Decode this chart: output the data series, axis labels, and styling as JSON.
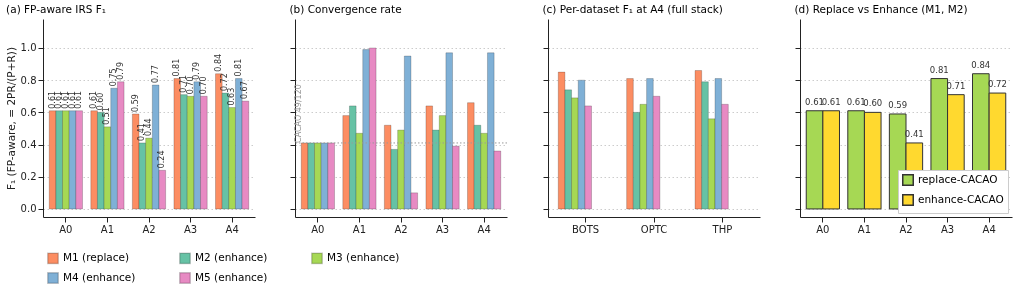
{
  "chart_data": [
    {
      "type": "bar",
      "title": "(a) FP-aware IRS F₁",
      "ylabel": "F₁ (FP-aware, = 2PR/(P+R))",
      "categories": [
        "A0",
        "A1",
        "A2",
        "A3",
        "A4"
      ],
      "series": [
        {
          "name": "M1 (replace)",
          "color": "#fc8d62",
          "values": [
            0.61,
            0.61,
            0.59,
            0.81,
            0.84
          ],
          "value_labels": [
            "0.61",
            "0.61",
            "0.59",
            "0.81",
            "0.84"
          ]
        },
        {
          "name": "M2 (enhance)",
          "color": "#66c2a5",
          "values": [
            0.61,
            0.6,
            0.41,
            0.71,
            0.72
          ],
          "value_labels": [
            "0.61",
            "0.60",
            "0.41",
            "0.71",
            "0.72"
          ]
        },
        {
          "name": "M3 (enhance)",
          "color": "#a6d854",
          "values": [
            0.61,
            0.51,
            0.44,
            0.7,
            0.63
          ],
          "value_labels": [
            "0.61",
            "0.51",
            "0.44",
            "0.70",
            "0.63"
          ]
        },
        {
          "name": "M4 (enhance)",
          "color": "#7fb0d6",
          "values": [
            0.61,
            0.75,
            0.77,
            0.79,
            0.81
          ],
          "value_labels": [
            "0.61",
            "0.75",
            "0.77",
            "0.79",
            "0.81"
          ]
        },
        {
          "name": "M5 (enhance)",
          "color": "#e78ac3",
          "values": [
            0.61,
            0.79,
            0.24,
            0.7,
            0.67
          ],
          "value_labels": [
            "0.61",
            "0.79",
            "0.24",
            "0.70",
            "0.67"
          ]
        }
      ],
      "ylim": [
        -0.05,
        1.18
      ],
      "yticks": [
        {
          "value": 0,
          "label": "0.0"
        },
        {
          "value": 0.2,
          "label": "0.2"
        },
        {
          "value": 0.4,
          "label": "0.4"
        },
        {
          "value": 0.6,
          "label": "0.6"
        },
        {
          "value": 0.8,
          "label": "0.8"
        },
        {
          "value": 1,
          "label": "1.0"
        }
      ],
      "grid": "y",
      "legend": "bottom"
    },
    {
      "type": "bar",
      "title": "(b) Convergence rate",
      "categories": [
        "A0",
        "A1",
        "A2",
        "A3",
        "A4"
      ],
      "series": [
        {
          "name": "M1 (replace)",
          "color": "#fc8d62",
          "values": [
            0.41,
            0.58,
            0.52,
            0.64,
            0.66
          ]
        },
        {
          "name": "M2 (enhance)",
          "color": "#66c2a5",
          "values": [
            0.41,
            0.64,
            0.37,
            0.49,
            0.52
          ]
        },
        {
          "name": "M3 (enhance)",
          "color": "#a6d854",
          "values": [
            0.41,
            0.47,
            0.49,
            0.58,
            0.47
          ]
        },
        {
          "name": "M4 (enhance)",
          "color": "#7fb0d6",
          "values": [
            0.41,
            0.99,
            0.95,
            0.97,
            0.97
          ]
        },
        {
          "name": "M5 (enhance)",
          "color": "#e78ac3",
          "values": [
            0.41,
            1.0,
            0.1,
            0.39,
            0.36
          ]
        }
      ],
      "ref_lines": [
        {
          "axis": "y",
          "value": 0.41,
          "label": "CACAO 49/120",
          "color": "#999999",
          "line_style": "dotted"
        }
      ],
      "ylim": [
        -0.05,
        1.18
      ],
      "yticks": [
        0,
        0.2,
        0.4,
        0.6,
        0.8,
        1
      ],
      "grid": "y",
      "tick_labels": "x"
    },
    {
      "type": "bar",
      "title": "(c) Per-dataset F₁ at A4 (full stack)",
      "categories": [
        "BOTS",
        "OPTC",
        "THP"
      ],
      "series": [
        {
          "name": "M1 (replace)",
          "color": "#fc8d62",
          "values": [
            0.85,
            0.81,
            0.86
          ]
        },
        {
          "name": "M2 (enhance)",
          "color": "#66c2a5",
          "values": [
            0.74,
            0.6,
            0.79
          ]
        },
        {
          "name": "M3 (enhance)",
          "color": "#a6d854",
          "values": [
            0.69,
            0.65,
            0.56
          ]
        },
        {
          "name": "M4 (enhance)",
          "color": "#7fb0d6",
          "values": [
            0.8,
            0.81,
            0.81
          ]
        },
        {
          "name": "M5 (enhance)",
          "color": "#e78ac3",
          "values": [
            0.64,
            0.7,
            0.65
          ]
        }
      ],
      "ylim": [
        -0.05,
        1.18
      ],
      "yticks": [
        0,
        0.2,
        0.4,
        0.6,
        0.8,
        1
      ],
      "grid": "y",
      "tick_labels": "x"
    },
    {
      "type": "bar",
      "title": "(d) Replace vs Enhance (M1, M2)",
      "categories": [
        "A0",
        "A1",
        "A2",
        "A3",
        "A4"
      ],
      "series": [
        {
          "name": "replace-CACAO",
          "color": "#a6d854",
          "values": [
            0.61,
            0.61,
            0.59,
            0.81,
            0.84
          ],
          "value_labels": [
            "0.61",
            "0.61",
            "0.59",
            "0.81",
            "0.84"
          ]
        },
        {
          "name": "enhance-CACAO",
          "color": "#ffd92f",
          "values": [
            0.61,
            0.6,
            0.41,
            0.71,
            0.72
          ],
          "value_labels": [
            "0.61",
            "0.60",
            "0.41",
            "0.71",
            "0.72"
          ]
        }
      ],
      "ylim": [
        -0.05,
        1.18
      ],
      "yticks": [
        0,
        0.2,
        0.4,
        0.6,
        0.8,
        1
      ],
      "grid": "y",
      "legend": "bottom right",
      "tick_labels": "x"
    }
  ]
}
